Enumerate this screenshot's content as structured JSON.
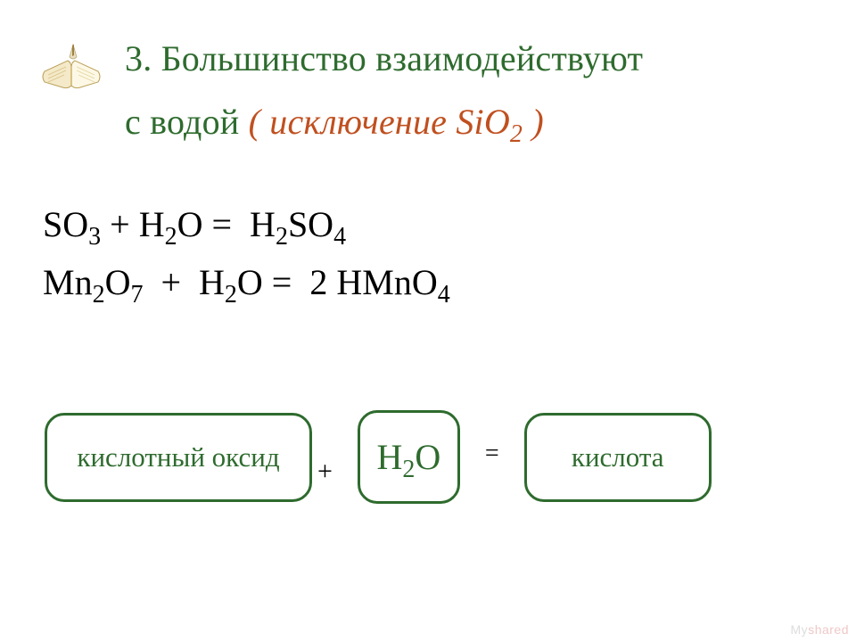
{
  "colors": {
    "title": "#2e6b2e",
    "exception": "#c05020",
    "body_text": "#000000",
    "box_border": "#2e6b2e",
    "box_text": "#2e6b2e",
    "background": "#ffffff",
    "watermark_my": "#dddddd",
    "watermark_shared": "#f0c8c8"
  },
  "fonts": {
    "title_size": 40,
    "eq_size": 40,
    "box_label_size": 31,
    "h2o_size": 40,
    "op_size": 30
  },
  "title": {
    "line1": "3. Большинство взаимодействуют",
    "line2_prefix": "с  водой  ",
    "line2_exception": "( исключение SiO",
    "line2_exception_sub": "2",
    "line2_exception_close": " )"
  },
  "equations": [
    {
      "parts": [
        {
          "t": "SO"
        },
        {
          "sub": "3"
        },
        {
          "t": " + H"
        },
        {
          "sub": "2"
        },
        {
          "t": "O = "
        },
        {
          "t": " H"
        },
        {
          "sub": "2"
        },
        {
          "t": "SO"
        },
        {
          "sub": "4"
        }
      ]
    },
    {
      "parts": [
        {
          "t": "Mn"
        },
        {
          "sub": "2"
        },
        {
          "t": "O"
        },
        {
          "sub": "7"
        },
        {
          "t": "  +  H"
        },
        {
          "sub": "2"
        },
        {
          "t": "O =  2 HMnO"
        },
        {
          "sub": "4"
        }
      ]
    }
  ],
  "scheme": {
    "oxide_label": "кислотный оксид",
    "plus": "+",
    "h2o_prefix": "Н",
    "h2o_sub": "2",
    "h2o_suffix": "О",
    "equals": "=",
    "acid_label": "кислота",
    "box_border_radius": 22,
    "box_border_width": 3
  },
  "watermark": {
    "part1": "Мy",
    "part2": "shared"
  }
}
